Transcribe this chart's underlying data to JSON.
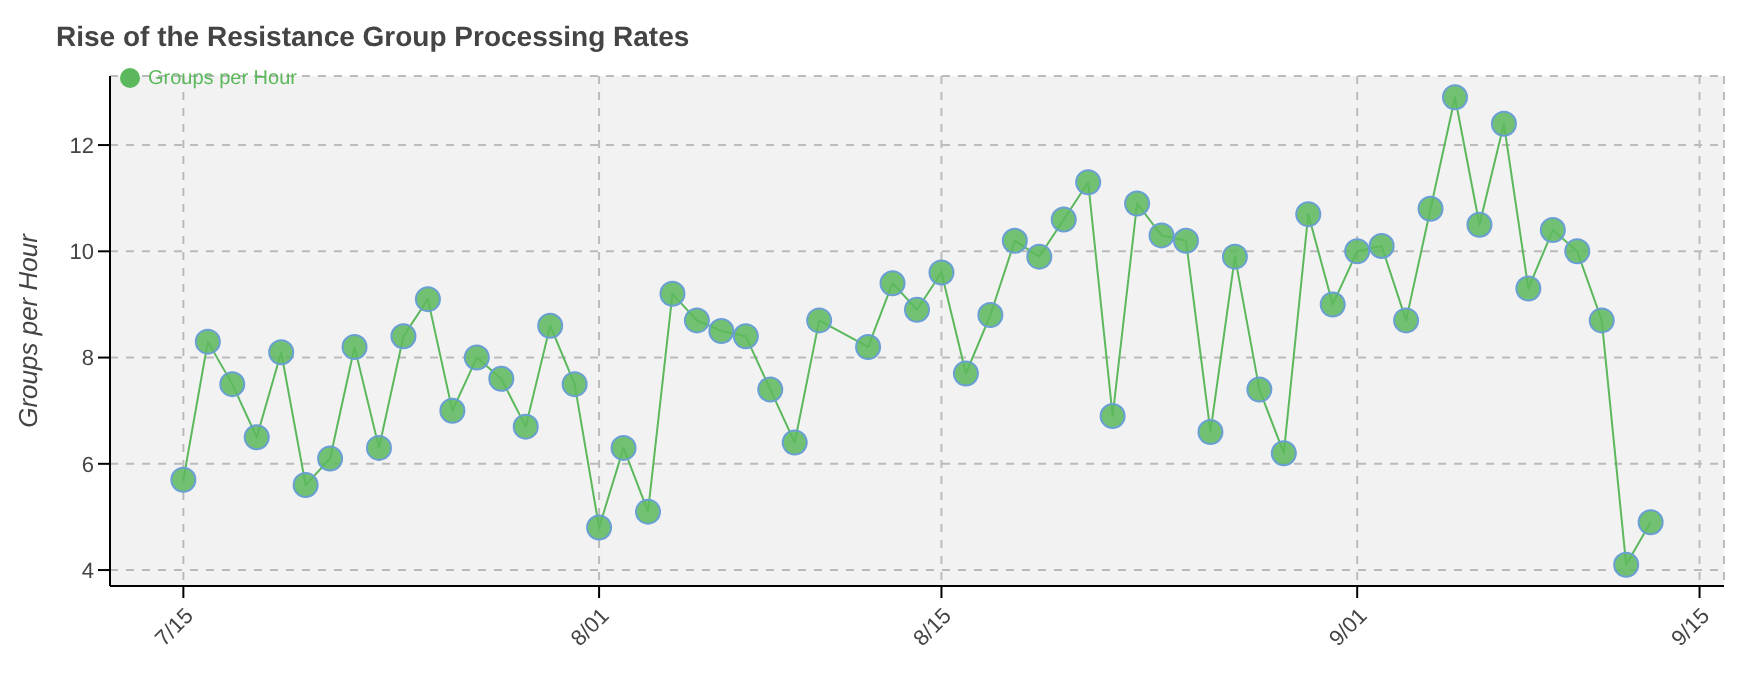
{
  "chart_data": {
    "type": "line",
    "title": "Rise of the Resistance Group Processing Rates",
    "ylabel": "Groups per Hour",
    "x": [
      "--07-15",
      "--07-16",
      "--07-17",
      "--07-18",
      "--07-19",
      "--07-20",
      "--07-21",
      "--07-22",
      "--07-23",
      "--07-24",
      "--07-25",
      "--07-26",
      "--07-27",
      "--07-28",
      "--07-29",
      "--07-30",
      "--07-31",
      "--08-01",
      "--08-02",
      "--08-03",
      "--08-04",
      "--08-05",
      "--08-06",
      "--08-07",
      "--08-08",
      "--08-09",
      "--08-10",
      "--08-12",
      "--08-13",
      "--08-14",
      "--08-15",
      "--08-16",
      "--08-17",
      "--08-18",
      "--08-19",
      "--08-20",
      "--08-21",
      "--08-22",
      "--08-23",
      "--08-24",
      "--08-25",
      "--08-26",
      "--08-27",
      "--08-28",
      "--08-29",
      "--08-30",
      "--08-31",
      "--09-01",
      "--09-02",
      "--09-03",
      "--09-04",
      "--09-05",
      "--09-06",
      "--09-07",
      "--09-08",
      "--09-09",
      "--09-10",
      "--09-11",
      "--09-12",
      "--09-13"
    ],
    "series": [
      {
        "name": "Groups per Hour",
        "color": "#5cb85c",
        "values": [
          5.7,
          8.3,
          7.5,
          6.5,
          8.1,
          5.6,
          6.1,
          8.2,
          6.3,
          8.4,
          9.1,
          7.0,
          8.0,
          7.6,
          6.7,
          8.6,
          7.5,
          4.8,
          6.3,
          5.1,
          9.2,
          8.7,
          8.5,
          8.4,
          7.4,
          6.4,
          8.7,
          8.2,
          9.4,
          8.9,
          9.6,
          7.7,
          8.8,
          10.2,
          9.9,
          10.6,
          11.3,
          6.9,
          10.9,
          10.3,
          10.2,
          6.6,
          9.9,
          7.4,
          6.2,
          10.7,
          9.0,
          10.0,
          10.1,
          8.7,
          10.8,
          12.9,
          10.5,
          12.4,
          9.3,
          10.4,
          10.0,
          8.7,
          4.1,
          4.9
        ]
      }
    ],
    "xlim": [
      "--07-12",
      "--09-16"
    ],
    "xticks": [
      {
        "value": "--07-15",
        "label": "7/15"
      },
      {
        "value": "--08-01",
        "label": "8/01"
      },
      {
        "value": "--08-15",
        "label": "8/15"
      },
      {
        "value": "--09-01",
        "label": "9/01"
      },
      {
        "value": "--09-15",
        "label": "9/15"
      }
    ],
    "ylim": [
      3.7,
      13.3
    ],
    "yticks": [
      4,
      6,
      8,
      10,
      12
    ],
    "grid": true,
    "legend": "top left",
    "marker": "circle",
    "line_style": "solid"
  }
}
